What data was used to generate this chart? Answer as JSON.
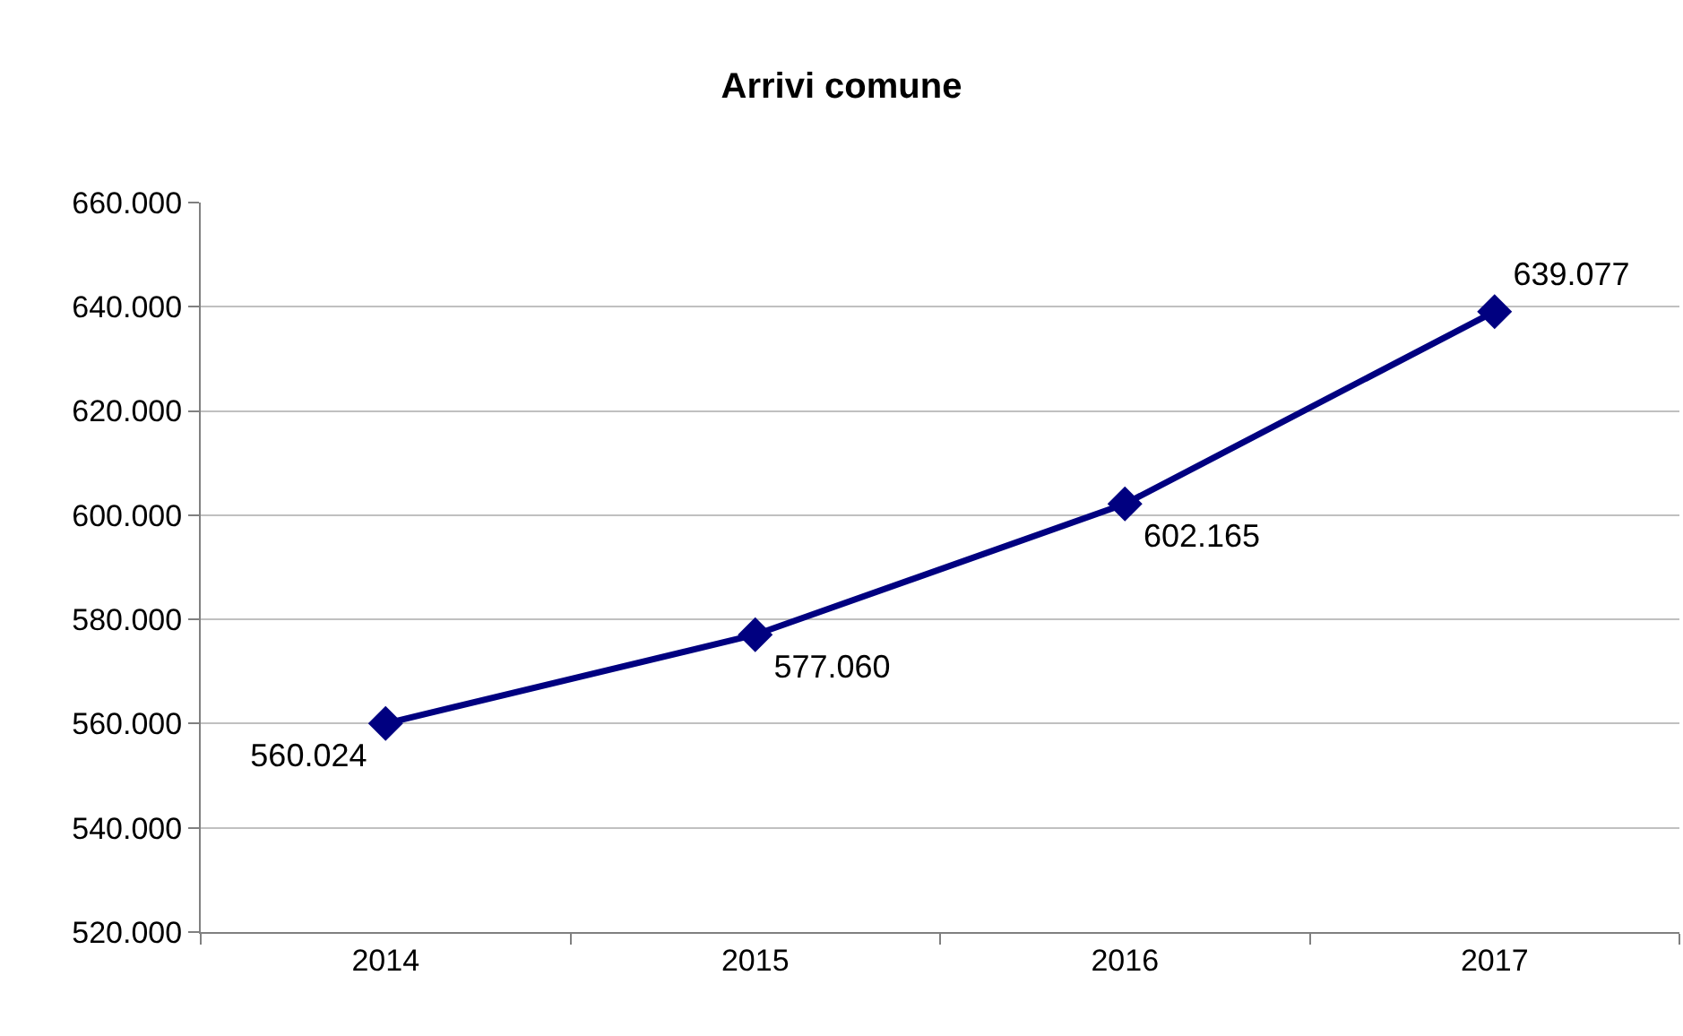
{
  "chart_data": {
    "type": "line",
    "title": "Arrivi comune",
    "categories": [
      "2014",
      "2015",
      "2016",
      "2017"
    ],
    "series": [
      {
        "color": "#000080",
        "values": [
          560024,
          577060,
          602165,
          639077
        ],
        "value_labels": [
          "560.024",
          "577.060",
          "602.165",
          "639.077"
        ]
      }
    ],
    "ylim": [
      520000,
      660000
    ],
    "yticks": [
      {
        "value": 520000,
        "label": "520.000"
      },
      {
        "value": 540000,
        "label": "540.000"
      },
      {
        "value": 560000,
        "label": "560.000"
      },
      {
        "value": 580000,
        "label": "580.000"
      },
      {
        "value": 600000,
        "label": "600.000"
      },
      {
        "value": 620000,
        "label": "620.000"
      },
      {
        "value": 640000,
        "label": "640.000"
      },
      {
        "value": 660000,
        "label": "660.000"
      }
    ],
    "grid": "y",
    "marker": "diamond",
    "line_style": "solid"
  }
}
